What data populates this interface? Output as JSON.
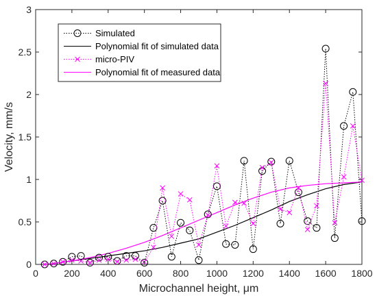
{
  "chart_data": {
    "type": "line",
    "xlabel": "Microchannel height, μm",
    "ylabel": "Velocity, mm/s",
    "xlim": [
      0,
      1800
    ],
    "ylim": [
      0,
      3
    ],
    "xticks": [
      0,
      200,
      400,
      600,
      800,
      1000,
      1200,
      1400,
      1600,
      1800
    ],
    "yticks": [
      0,
      0.5,
      1,
      1.5,
      2,
      2.5,
      3
    ],
    "grid": false,
    "legend_position": "top-left",
    "series": [
      {
        "name": "Simulated",
        "style": "dotted-circle",
        "color": "#000000",
        "x": [
          50,
          100,
          150,
          200,
          250,
          300,
          350,
          400,
          450,
          500,
          550,
          600,
          650,
          700,
          750,
          800,
          850,
          900,
          950,
          1000,
          1050,
          1100,
          1150,
          1200,
          1250,
          1300,
          1350,
          1400,
          1450,
          1500,
          1550,
          1600,
          1650,
          1700,
          1750,
          1800
        ],
        "y": [
          0.0,
          0.01,
          0.03,
          0.09,
          0.1,
          0.02,
          0.08,
          0.09,
          0.04,
          0.1,
          0.1,
          0.02,
          0.43,
          0.75,
          0.09,
          0.49,
          0.4,
          0.05,
          0.59,
          0.92,
          0.24,
          0.23,
          1.22,
          0.18,
          1.1,
          1.21,
          0.48,
          1.22,
          0.85,
          0.51,
          0.43,
          2.54,
          0.31,
          1.63,
          2.03,
          0.51
        ]
      },
      {
        "name": "Polynomial fit of simulated data",
        "style": "solid",
        "color": "#000000",
        "x": [
          50,
          100,
          200,
          300,
          400,
          500,
          600,
          700,
          800,
          900,
          1000,
          1100,
          1200,
          1300,
          1400,
          1500,
          1600,
          1700,
          1800
        ],
        "y": [
          0.0,
          0.01,
          0.04,
          0.07,
          0.1,
          0.13,
          0.16,
          0.2,
          0.25,
          0.3,
          0.38,
          0.46,
          0.55,
          0.64,
          0.74,
          0.82,
          0.89,
          0.94,
          0.97
        ]
      },
      {
        "name": "micro-PIV",
        "style": "dotted-x",
        "color": "#ff00ff",
        "x": [
          50,
          100,
          150,
          200,
          250,
          300,
          350,
          400,
          450,
          500,
          550,
          600,
          650,
          700,
          750,
          800,
          850,
          900,
          950,
          1000,
          1050,
          1100,
          1150,
          1200,
          1250,
          1300,
          1350,
          1400,
          1450,
          1500,
          1550,
          1600,
          1650,
          1700,
          1750,
          1800
        ],
        "y": [
          0.0,
          0.01,
          0.03,
          0.05,
          0.04,
          0.02,
          0.05,
          0.06,
          0.03,
          0.05,
          0.06,
          0.03,
          0.2,
          0.9,
          0.33,
          0.83,
          0.76,
          0.23,
          0.58,
          1.16,
          0.45,
          0.73,
          0.72,
          0.48,
          1.14,
          1.2,
          0.65,
          0.61,
          0.9,
          0.41,
          0.69,
          2.13,
          0.49,
          1.03,
          1.63,
          0.99
        ]
      },
      {
        "name": "Polynomial fit of measured data",
        "style": "solid",
        "color": "#ff00ff",
        "x": [
          50,
          100,
          200,
          300,
          400,
          500,
          600,
          700,
          800,
          900,
          1000,
          1100,
          1200,
          1300,
          1400,
          1500,
          1600,
          1700,
          1800
        ],
        "y": [
          0.0,
          0.01,
          0.04,
          0.08,
          0.13,
          0.19,
          0.26,
          0.34,
          0.43,
          0.52,
          0.61,
          0.7,
          0.78,
          0.85,
          0.9,
          0.93,
          0.95,
          0.96,
          0.97
        ]
      }
    ]
  }
}
